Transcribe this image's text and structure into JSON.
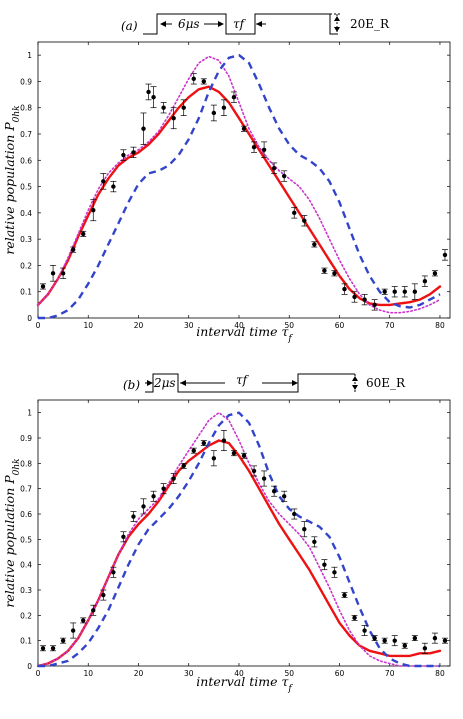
{
  "chart_data": [
    {
      "type": "line",
      "panel_label": "(a)",
      "pulse_labels": {
        "pulse": "6μs",
        "interval": "τf",
        "depth": "20E_R"
      },
      "xlabel": "interval time τf",
      "ylabel": "relative population P0hk",
      "xlim": [
        0,
        82
      ],
      "ylim": [
        0,
        1.05
      ],
      "xticks": [
        0,
        10,
        20,
        30,
        40,
        50,
        60,
        70,
        80
      ],
      "yticks": [
        0,
        0.1,
        0.2,
        0.3,
        0.4,
        0.5,
        0.6,
        0.7,
        0.8,
        0.9,
        1
      ],
      "series": [
        {
          "style": "solid",
          "color": "#ee1111",
          "x": [
            0,
            2,
            4,
            6,
            8,
            10,
            12,
            14,
            16,
            18,
            20,
            22,
            24,
            26,
            28,
            30,
            32,
            34,
            36,
            38,
            40,
            42,
            44,
            46,
            48,
            50,
            52,
            54,
            56,
            58,
            60,
            62,
            64,
            66,
            68,
            70,
            72,
            74,
            76,
            78,
            80
          ],
          "y": [
            0.05,
            0.09,
            0.15,
            0.22,
            0.31,
            0.39,
            0.47,
            0.53,
            0.58,
            0.61,
            0.63,
            0.66,
            0.7,
            0.75,
            0.8,
            0.84,
            0.87,
            0.88,
            0.86,
            0.82,
            0.76,
            0.7,
            0.64,
            0.58,
            0.52,
            0.46,
            0.4,
            0.34,
            0.28,
            0.22,
            0.16,
            0.11,
            0.075,
            0.055,
            0.05,
            0.05,
            0.055,
            0.06,
            0.07,
            0.09,
            0.12
          ]
        },
        {
          "style": "dotted",
          "color": "#cc33cc",
          "x": [
            0,
            2,
            4,
            6,
            8,
            10,
            12,
            14,
            16,
            18,
            20,
            22,
            24,
            26,
            28,
            30,
            32,
            34,
            36,
            38,
            40,
            42,
            44,
            46,
            48,
            50,
            52,
            54,
            56,
            58,
            60,
            62,
            64,
            66,
            68,
            70,
            72,
            74,
            76,
            78,
            80
          ],
          "y": [
            0.05,
            0.09,
            0.15,
            0.23,
            0.32,
            0.41,
            0.49,
            0.55,
            0.59,
            0.62,
            0.64,
            0.67,
            0.71,
            0.77,
            0.84,
            0.91,
            0.97,
            0.995,
            0.98,
            0.92,
            0.82,
            0.72,
            0.65,
            0.6,
            0.56,
            0.53,
            0.5,
            0.45,
            0.38,
            0.3,
            0.22,
            0.15,
            0.09,
            0.05,
            0.03,
            0.02,
            0.02,
            0.025,
            0.035,
            0.05,
            0.07
          ]
        },
        {
          "style": "dashed",
          "color": "#3344cc",
          "x": [
            0,
            2,
            4,
            6,
            8,
            10,
            12,
            14,
            16,
            18,
            20,
            22,
            24,
            26,
            28,
            30,
            32,
            34,
            36,
            38,
            40,
            42,
            44,
            46,
            48,
            50,
            52,
            54,
            56,
            58,
            60,
            62,
            64,
            66,
            68,
            70,
            72,
            74,
            76,
            78,
            80
          ],
          "y": [
            0.0,
            0.0,
            0.01,
            0.03,
            0.07,
            0.13,
            0.2,
            0.28,
            0.36,
            0.44,
            0.51,
            0.55,
            0.56,
            0.58,
            0.62,
            0.68,
            0.76,
            0.86,
            0.94,
            0.99,
            1.0,
            0.97,
            0.89,
            0.8,
            0.72,
            0.66,
            0.62,
            0.6,
            0.57,
            0.52,
            0.44,
            0.34,
            0.24,
            0.16,
            0.1,
            0.06,
            0.045,
            0.04,
            0.05,
            0.07,
            0.09
          ]
        }
      ],
      "points": {
        "x": [
          1,
          3,
          5,
          7,
          9,
          11,
          13,
          15,
          17,
          19,
          21,
          22,
          23,
          25,
          27,
          29,
          31,
          33,
          35,
          37,
          39,
          41,
          43,
          45,
          47,
          49,
          51,
          53,
          55,
          57,
          59,
          61,
          63,
          65,
          67,
          69,
          71,
          73,
          75,
          77,
          79,
          81
        ],
        "y": [
          0.12,
          0.17,
          0.17,
          0.26,
          0.32,
          0.41,
          0.52,
          0.5,
          0.62,
          0.63,
          0.72,
          0.86,
          0.84,
          0.8,
          0.76,
          0.8,
          0.91,
          0.9,
          0.78,
          0.8,
          0.84,
          0.72,
          0.65,
          0.64,
          0.57,
          0.54,
          0.4,
          0.37,
          0.28,
          0.18,
          0.17,
          0.11,
          0.08,
          0.07,
          0.05,
          0.1,
          0.1,
          0.1,
          0.1,
          0.14,
          0.17,
          0.24
        ],
        "err": [
          0.01,
          0.03,
          0.02,
          0.01,
          0.01,
          0.04,
          0.03,
          0.02,
          0.02,
          0.02,
          0.06,
          0.03,
          0.04,
          0.02,
          0.04,
          0.03,
          0.02,
          0.01,
          0.03,
          0.03,
          0.02,
          0.01,
          0.02,
          0.03,
          0.02,
          0.02,
          0.02,
          0.02,
          0.01,
          0.01,
          0.01,
          0.02,
          0.02,
          0.02,
          0.02,
          0.01,
          0.02,
          0.02,
          0.03,
          0.02,
          0.01,
          0.02
        ]
      }
    },
    {
      "type": "line",
      "panel_label": "(b)",
      "pulse_labels": {
        "pulse": "2μs",
        "interval": "τf",
        "depth": "60E_R"
      },
      "xlabel": "interval time τf",
      "ylabel": "relative population P0hk",
      "xlim": [
        0,
        82
      ],
      "ylim": [
        0,
        1.05
      ],
      "xticks": [
        0,
        10,
        20,
        30,
        40,
        50,
        60,
        70,
        80
      ],
      "yticks": [
        0,
        0.1,
        0.2,
        0.3,
        0.4,
        0.5,
        0.6,
        0.7,
        0.8,
        0.9,
        1
      ],
      "series": [
        {
          "style": "solid",
          "color": "#ee1111",
          "x": [
            0,
            2,
            4,
            6,
            8,
            10,
            12,
            14,
            16,
            18,
            20,
            22,
            24,
            26,
            28,
            30,
            32,
            34,
            36,
            38,
            40,
            42,
            44,
            46,
            48,
            50,
            52,
            54,
            56,
            58,
            60,
            62,
            64,
            66,
            68,
            70,
            72,
            74,
            76,
            78,
            80
          ],
          "y": [
            0.0,
            0.01,
            0.03,
            0.06,
            0.11,
            0.18,
            0.26,
            0.35,
            0.44,
            0.51,
            0.56,
            0.6,
            0.65,
            0.71,
            0.77,
            0.81,
            0.84,
            0.87,
            0.89,
            0.88,
            0.83,
            0.77,
            0.7,
            0.63,
            0.56,
            0.5,
            0.44,
            0.38,
            0.31,
            0.24,
            0.17,
            0.12,
            0.08,
            0.06,
            0.05,
            0.04,
            0.04,
            0.04,
            0.05,
            0.05,
            0.06
          ]
        },
        {
          "style": "dotted",
          "color": "#cc33cc",
          "x": [
            0,
            2,
            4,
            6,
            8,
            10,
            12,
            14,
            16,
            18,
            20,
            22,
            24,
            26,
            28,
            30,
            32,
            34,
            36,
            38,
            40,
            42,
            44,
            46,
            48,
            50,
            52,
            54,
            56,
            58,
            60,
            62,
            64,
            66,
            68,
            70,
            72,
            74,
            76,
            78,
            80
          ],
          "y": [
            0.0,
            0.01,
            0.03,
            0.06,
            0.11,
            0.18,
            0.26,
            0.35,
            0.44,
            0.52,
            0.58,
            0.62,
            0.66,
            0.72,
            0.79,
            0.85,
            0.91,
            0.97,
            1.0,
            0.97,
            0.89,
            0.8,
            0.72,
            0.65,
            0.6,
            0.56,
            0.52,
            0.47,
            0.39,
            0.31,
            0.22,
            0.14,
            0.08,
            0.04,
            0.02,
            0.01,
            0.0,
            0.0,
            0.0,
            0.0,
            0.0
          ]
        },
        {
          "style": "dashed",
          "color": "#3344cc",
          "x": [
            0,
            2,
            4,
            6,
            8,
            10,
            12,
            14,
            16,
            18,
            20,
            22,
            24,
            26,
            28,
            30,
            32,
            34,
            36,
            38,
            40,
            42,
            44,
            46,
            48,
            50,
            52,
            54,
            56,
            58,
            60,
            62,
            64,
            66,
            68,
            70,
            72,
            74,
            76,
            78,
            80
          ],
          "y": [
            0.0,
            0.0,
            0.01,
            0.02,
            0.05,
            0.09,
            0.15,
            0.22,
            0.31,
            0.4,
            0.48,
            0.54,
            0.58,
            0.62,
            0.67,
            0.73,
            0.8,
            0.88,
            0.95,
            0.99,
            1.0,
            0.96,
            0.87,
            0.76,
            0.67,
            0.62,
            0.59,
            0.57,
            0.55,
            0.51,
            0.43,
            0.33,
            0.23,
            0.14,
            0.07,
            0.03,
            0.01,
            0.0,
            0.0,
            0.0,
            0.0
          ]
        }
      ],
      "points": {
        "x": [
          1,
          3,
          5,
          7,
          9,
          11,
          13,
          15,
          17,
          19,
          21,
          23,
          25,
          27,
          29,
          31,
          33,
          35,
          37,
          39,
          41,
          43,
          45,
          47,
          49,
          51,
          53,
          55,
          57,
          59,
          61,
          63,
          65,
          67,
          69,
          71,
          73,
          75,
          77,
          79,
          81
        ],
        "y": [
          0.07,
          0.07,
          0.1,
          0.14,
          0.18,
          0.22,
          0.28,
          0.37,
          0.51,
          0.59,
          0.63,
          0.67,
          0.7,
          0.74,
          0.79,
          0.85,
          0.88,
          0.82,
          0.89,
          0.84,
          0.83,
          0.77,
          0.74,
          0.69,
          0.67,
          0.6,
          0.54,
          0.49,
          0.4,
          0.37,
          0.28,
          0.19,
          0.14,
          0.11,
          0.1,
          0.1,
          0.08,
          0.11,
          0.07,
          0.11,
          0.1
        ],
        "err": [
          0.01,
          0.01,
          0.01,
          0.03,
          0.01,
          0.02,
          0.02,
          0.02,
          0.02,
          0.02,
          0.03,
          0.02,
          0.02,
          0.02,
          0.01,
          0.01,
          0.01,
          0.03,
          0.04,
          0.01,
          0.01,
          0.02,
          0.03,
          0.02,
          0.02,
          0.02,
          0.03,
          0.02,
          0.02,
          0.02,
          0.01,
          0.01,
          0.02,
          0.01,
          0.01,
          0.02,
          0.01,
          0.01,
          0.02,
          0.02,
          0.01
        ]
      }
    }
  ]
}
